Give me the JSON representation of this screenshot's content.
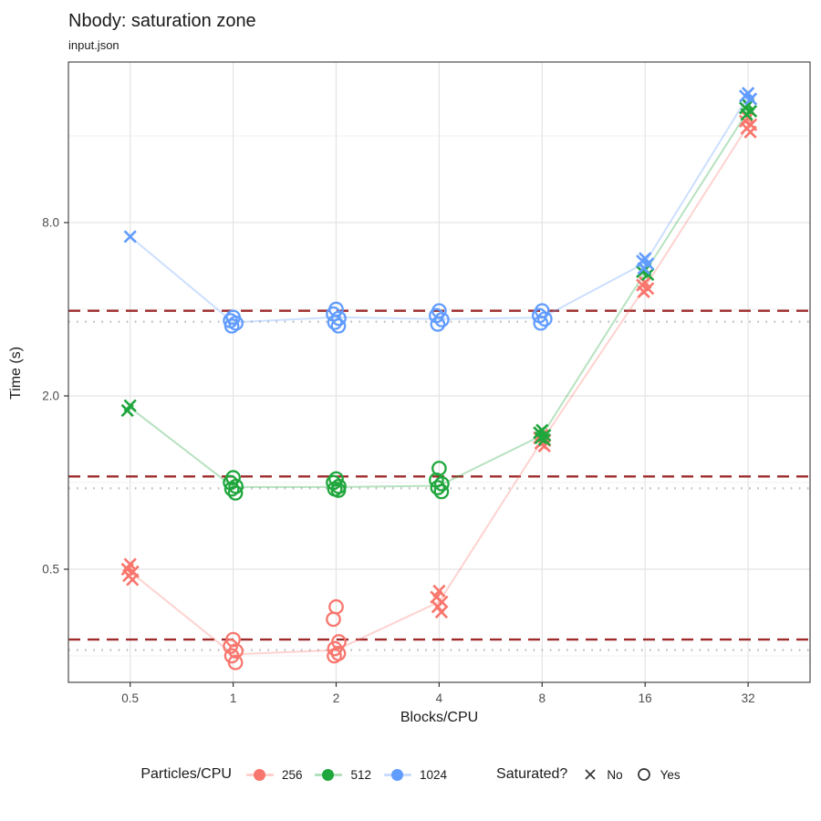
{
  "title": "Nbody: saturation zone",
  "subtitle": "input.json",
  "axes": {
    "x_title": "Blocks/CPU",
    "y_title": "Time (s)"
  },
  "legend": {
    "color": {
      "title": "Particles/CPU",
      "entries": [
        {
          "label": "256",
          "color": "#F8766D"
        },
        {
          "label": "512",
          "color": "#1FA63C"
        },
        {
          "label": "1024",
          "color": "#619CFF"
        }
      ]
    },
    "shape": {
      "title": "Saturated?",
      "entries": [
        {
          "label": "No",
          "shape": "x"
        },
        {
          "label": "Yes",
          "shape": "circle"
        }
      ]
    }
  },
  "colors": {
    "dashed_ref": "#9E2B2B",
    "dotted_ref": "#BDBDBD",
    "grid_major": "#E4E4E4",
    "grid_minor": "#F2F2F2",
    "panel_border": "#4A4A4A",
    "tick_mark": "#333333",
    "tick_label": "#4D4D4D"
  },
  "chart_data": {
    "type": "scatter",
    "title": "Nbody: saturation zone",
    "subtitle": "input.json",
    "xlabel": "Blocks/CPU",
    "ylabel": "Time (s)",
    "x_scale": "log2",
    "y_scale": "log10",
    "x_ticks": [
      0.5,
      1,
      2,
      4,
      8,
      16,
      32
    ],
    "x_tick_labels": [
      "0.5",
      "1",
      "2",
      "4",
      "8",
      "16",
      "32"
    ],
    "y_ticks": [
      0.5,
      2.0,
      8.0
    ],
    "y_tick_labels": [
      "0.5",
      "2.0",
      "8.0"
    ],
    "y_minor_gridlines": [
      0.25,
      1,
      4,
      16
    ],
    "x_domain": [
      0.33,
      48.6
    ],
    "y_domain": [
      0.2,
      28.9
    ],
    "legend_position": "bottom",
    "shape_meaning": {
      "x": "No (not saturated)",
      "circle": "Yes (saturated)"
    },
    "reference_lines": {
      "dashed": {
        "style": "dashed",
        "values": [
          3.95,
          1.05,
          0.285
        ]
      },
      "dotted": {
        "style": "dotted",
        "values": [
          3.62,
          0.955,
          0.262
        ]
      }
    },
    "series": [
      {
        "name": "256",
        "color": "#F8766D",
        "line_times": [
          0.49,
          0.253,
          0.262,
          0.385,
          1.4,
          4.78,
          17.4
        ],
        "groups": [
          {
            "x": 0.5,
            "saturated": false,
            "times": [
              0.52,
              0.5,
              0.49,
              0.475,
              0.46
            ]
          },
          {
            "x": 1,
            "saturated": true,
            "times": [
              0.285,
              0.27,
              0.26,
              0.25,
              0.237
            ]
          },
          {
            "x": 2,
            "saturated": true,
            "times": [
              0.37,
              0.335,
              0.28,
              0.265,
              0.255,
              0.25
            ]
          },
          {
            "x": 4,
            "saturated": false,
            "times": [
              0.42,
              0.4,
              0.385,
              0.37,
              0.355
            ]
          },
          {
            "x": 8,
            "saturated": false,
            "times": [
              1.46,
              1.43,
              1.4,
              1.37,
              1.34
            ]
          },
          {
            "x": 16,
            "saturated": false,
            "times": [
              4.95,
              4.85,
              4.72,
              4.6
            ]
          },
          {
            "x": 32,
            "saturated": false,
            "times": [
              18.5,
              18.0,
              17.5,
              17.0,
              16.5
            ]
          }
        ]
      },
      {
        "name": "512",
        "color": "#1FA63C",
        "line_times": [
          1.82,
          0.965,
          0.965,
          0.975,
          1.46,
          5.38,
          19.6
        ],
        "groups": [
          {
            "x": 0.5,
            "saturated": false,
            "times": [
              1.85,
              1.78
            ]
          },
          {
            "x": 1,
            "saturated": true,
            "times": [
              1.04,
              1.0,
              0.97,
              0.95,
              0.92
            ]
          },
          {
            "x": 2,
            "saturated": true,
            "times": [
              1.03,
              1.0,
              0.97,
              0.95,
              0.94
            ]
          },
          {
            "x": 4,
            "saturated": true,
            "times": [
              1.12,
              1.02,
              0.99,
              0.96,
              0.93
            ]
          },
          {
            "x": 8,
            "saturated": false,
            "times": [
              1.52,
              1.49,
              1.46,
              1.43,
              1.41
            ]
          },
          {
            "x": 16,
            "saturated": false,
            "times": [
              5.5,
              5.4,
              5.28
            ]
          },
          {
            "x": 32,
            "saturated": false,
            "times": [
              20.5,
              20.0,
              19.5,
              19.0
            ]
          }
        ]
      },
      {
        "name": "1024",
        "color": "#619CFF",
        "line_times": [
          7.15,
          3.6,
          3.75,
          3.7,
          3.74,
          5.8,
          22.0
        ],
        "groups": [
          {
            "x": 0.5,
            "saturated": false,
            "times": [
              7.15
            ]
          },
          {
            "x": 1,
            "saturated": true,
            "times": [
              3.75,
              3.65,
              3.58,
              3.5
            ]
          },
          {
            "x": 2,
            "saturated": true,
            "times": [
              4.0,
              3.85,
              3.72,
              3.6,
              3.5
            ]
          },
          {
            "x": 4,
            "saturated": true,
            "times": [
              3.95,
              3.8,
              3.68,
              3.55
            ]
          },
          {
            "x": 8,
            "saturated": true,
            "times": [
              3.95,
              3.8,
              3.7,
              3.58
            ]
          },
          {
            "x": 16,
            "saturated": false,
            "times": [
              6.0,
              5.88,
              5.75,
              5.55
            ]
          },
          {
            "x": 32,
            "saturated": false,
            "times": [
              22.5,
              22.0,
              21.5
            ]
          }
        ]
      }
    ]
  }
}
